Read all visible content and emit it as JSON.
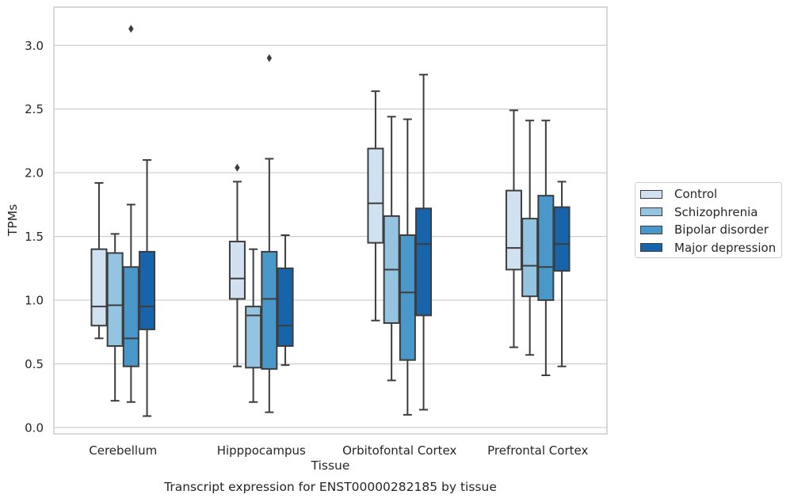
{
  "chart_data": {
    "type": "boxplot",
    "caption": "Transcript expression for ENST00000282185 by tissue",
    "xlabel": "Tissue",
    "ylabel": "TPMs",
    "ylim": [
      -0.05,
      3.3
    ],
    "yticks": [
      "0.0",
      "0.5",
      "1.0",
      "1.5",
      "2.0",
      "2.5",
      "3.0"
    ],
    "grid": "horizontal",
    "legend_position": "right",
    "categories": [
      "Cerebellum",
      "Hipppocampus",
      "Orbitofontal Cortex",
      "Prefrontal Cortex"
    ],
    "series": [
      {
        "name": "Control",
        "color": "#d0e1f2",
        "boxes": [
          {
            "whislo": 0.7,
            "q1": 0.8,
            "med": 0.95,
            "q3": 1.4,
            "whishi": 1.92,
            "fliers": []
          },
          {
            "whislo": 0.48,
            "q1": 1.01,
            "med": 1.17,
            "q3": 1.46,
            "whishi": 1.93,
            "fliers": [
              2.04
            ]
          },
          {
            "whislo": 0.84,
            "q1": 1.45,
            "med": 1.76,
            "q3": 2.19,
            "whishi": 2.64,
            "fliers": []
          },
          {
            "whislo": 0.63,
            "q1": 1.24,
            "med": 1.41,
            "q3": 1.86,
            "whishi": 2.49,
            "fliers": []
          }
        ]
      },
      {
        "name": "Schizophrenia",
        "color": "#94c4df",
        "boxes": [
          {
            "whislo": 0.21,
            "q1": 0.64,
            "med": 0.96,
            "q3": 1.37,
            "whishi": 1.52,
            "fliers": []
          },
          {
            "whislo": 0.2,
            "q1": 0.47,
            "med": 0.88,
            "q3": 0.95,
            "whishi": 1.4,
            "fliers": []
          },
          {
            "whislo": 0.37,
            "q1": 0.82,
            "med": 1.24,
            "q3": 1.66,
            "whishi": 2.44,
            "fliers": []
          },
          {
            "whislo": 0.57,
            "q1": 1.03,
            "med": 1.27,
            "q3": 1.64,
            "whishi": 2.41,
            "fliers": []
          }
        ]
      },
      {
        "name": "Bipolar disorder",
        "color": "#4a98c9",
        "boxes": [
          {
            "whislo": 0.2,
            "q1": 0.48,
            "med": 0.7,
            "q3": 1.26,
            "whishi": 1.75,
            "fliers": [
              3.13
            ]
          },
          {
            "whislo": 0.12,
            "q1": 0.46,
            "med": 1.01,
            "q3": 1.38,
            "whishi": 2.11,
            "fliers": [
              2.9
            ]
          },
          {
            "whislo": 0.1,
            "q1": 0.53,
            "med": 1.06,
            "q3": 1.51,
            "whishi": 2.42,
            "fliers": []
          },
          {
            "whislo": 0.41,
            "q1": 1.0,
            "med": 1.26,
            "q3": 1.82,
            "whishi": 2.41,
            "fliers": []
          }
        ]
      },
      {
        "name": "Major depression",
        "color": "#1764ab",
        "boxes": [
          {
            "whislo": 0.09,
            "q1": 0.77,
            "med": 0.95,
            "q3": 1.38,
            "whishi": 2.1,
            "fliers": []
          },
          {
            "whislo": 0.49,
            "q1": 0.64,
            "med": 0.8,
            "q3": 1.25,
            "whishi": 1.51,
            "fliers": []
          },
          {
            "whislo": 0.14,
            "q1": 0.88,
            "med": 1.44,
            "q3": 1.72,
            "whishi": 2.77,
            "fliers": []
          },
          {
            "whislo": 0.48,
            "q1": 1.23,
            "med": 1.44,
            "q3": 1.73,
            "whishi": 1.93,
            "fliers": []
          }
        ]
      }
    ]
  }
}
